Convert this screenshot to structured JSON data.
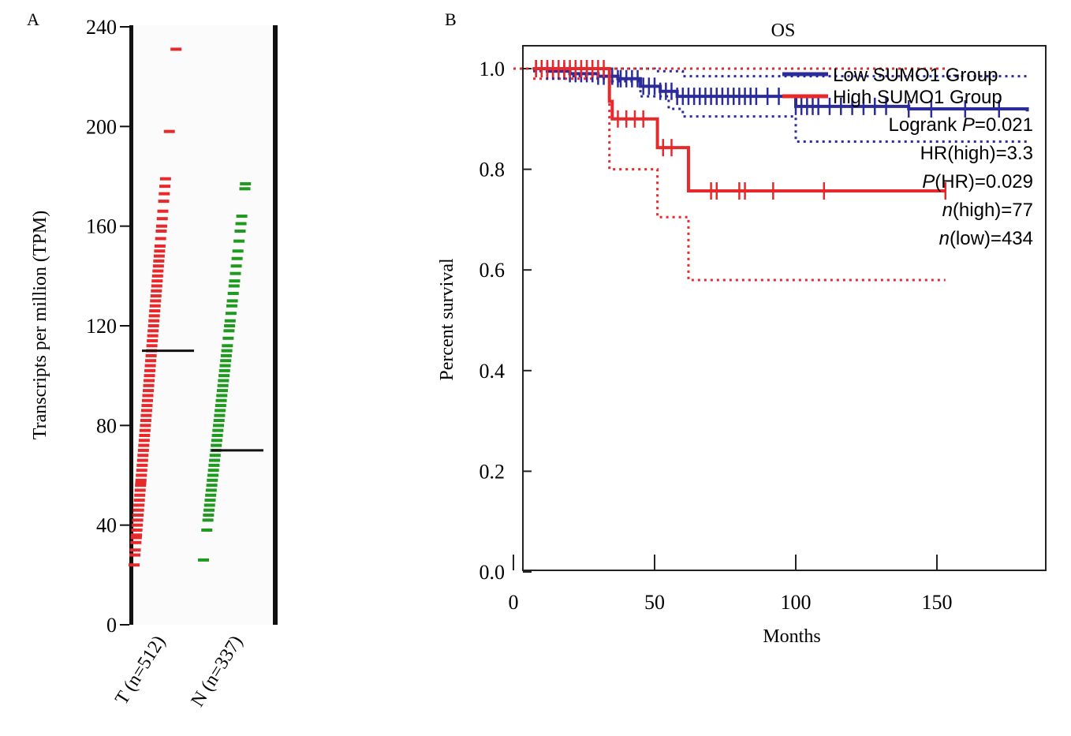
{
  "chart_data": [
    {
      "panel_label": "A",
      "type": "scatter",
      "ylabel": "Transcripts per million (TPM)",
      "ylim": [
        0,
        240
      ],
      "yticks": [
        0,
        40,
        80,
        120,
        160,
        200,
        240
      ],
      "groups": [
        {
          "name": "T (n=512)",
          "color": "#e8292c",
          "median": 110,
          "values": [
            24,
            28,
            30,
            33,
            35,
            36,
            38,
            40,
            42,
            44,
            46,
            48,
            50,
            52,
            54,
            56,
            57,
            58,
            60,
            62,
            64,
            66,
            68,
            70,
            72,
            74,
            76,
            78,
            80,
            82,
            84,
            86,
            88,
            90,
            92,
            94,
            96,
            98,
            100,
            102,
            104,
            106,
            108,
            110,
            112,
            114,
            116,
            118,
            120,
            122,
            124,
            126,
            128,
            130,
            132,
            134,
            136,
            138,
            140,
            142,
            144,
            146,
            148,
            150,
            152,
            155,
            158,
            160,
            163,
            166,
            170,
            173,
            176,
            179,
            198,
            231
          ]
        },
        {
          "name": "N (n=337)",
          "color": "#1f9a1f",
          "median": 70,
          "values": [
            26,
            38,
            42,
            44,
            46,
            48,
            50,
            52,
            54,
            56,
            58,
            60,
            62,
            64,
            66,
            68,
            70,
            72,
            74,
            76,
            78,
            80,
            82,
            84,
            86,
            88,
            90,
            92,
            94,
            96,
            98,
            100,
            102,
            104,
            106,
            108,
            110,
            112,
            115,
            118,
            120,
            122,
            125,
            128,
            130,
            133,
            136,
            138,
            141,
            144,
            147,
            150,
            154,
            158,
            161,
            164,
            175,
            177
          ]
        }
      ]
    },
    {
      "panel_label": "B",
      "type": "line",
      "title": "OS",
      "xlabel": "Months",
      "ylabel": "Percent survival",
      "xlim": [
        0,
        190
      ],
      "ylim": [
        0,
        1.05
      ],
      "xticks": [
        0,
        50,
        100,
        150
      ],
      "yticks": [
        "0.0",
        "0.2",
        "0.4",
        "0.6",
        "0.8",
        "1.0"
      ],
      "series": [
        {
          "name": "Low SUMO1 Group",
          "color": "#2b2b9a",
          "steps": [
            [
              7,
              1.0
            ],
            [
              12,
              0.995
            ],
            [
              20,
              0.99
            ],
            [
              30,
              0.985
            ],
            [
              37,
              0.98
            ],
            [
              45,
              0.965
            ],
            [
              52,
              0.955
            ],
            [
              58,
              0.945
            ],
            [
              68,
              0.945
            ],
            [
              80,
              0.945
            ],
            [
              98,
              0.945
            ],
            [
              100,
              0.925
            ],
            [
              140,
              0.92
            ],
            [
              182,
              0.915
            ]
          ],
          "ci_upper": [
            [
              7,
              1.0
            ],
            [
              50,
              0.995
            ],
            [
              60,
              0.985
            ],
            [
              100,
              0.985
            ],
            [
              182,
              0.985
            ]
          ],
          "ci_lower": [
            [
              7,
              0.995
            ],
            [
              20,
              0.985
            ],
            [
              35,
              0.975
            ],
            [
              45,
              0.945
            ],
            [
              55,
              0.92
            ],
            [
              60,
              0.905
            ],
            [
              100,
              0.855
            ],
            [
              182,
              0.855
            ]
          ],
          "censor_x": [
            8,
            10,
            12,
            14,
            16,
            18,
            20,
            22,
            24,
            26,
            28,
            30,
            32,
            35,
            37,
            38,
            40,
            42,
            44,
            46,
            48,
            50,
            52,
            54,
            56,
            58,
            60,
            62,
            64,
            66,
            68,
            70,
            72,
            74,
            76,
            78,
            80,
            82,
            84,
            86,
            90,
            94,
            100,
            102,
            104,
            106,
            108,
            112,
            116,
            120,
            124,
            128,
            132,
            140,
            148,
            160,
            172
          ]
        },
        {
          "name": "High SUMO1 Group",
          "color": "#e8292c",
          "steps": [
            [
              7,
              1.0
            ],
            [
              33,
              1.0
            ],
            [
              34,
              0.935
            ],
            [
              35,
              0.9
            ],
            [
              51,
              0.9
            ],
            [
              51,
              0.843
            ],
            [
              62,
              0.843
            ],
            [
              62,
              0.757
            ],
            [
              153,
              0.757
            ]
          ],
          "ci_upper": [
            [
              0,
              1.0
            ],
            [
              153,
              1.0
            ]
          ],
          "ci_lower": [
            [
              7,
              0.98
            ],
            [
              33,
              0.98
            ],
            [
              34,
              0.8
            ],
            [
              50,
              0.8
            ],
            [
              51,
              0.705
            ],
            [
              61,
              0.705
            ],
            [
              62,
              0.58
            ],
            [
              153,
              0.58
            ]
          ],
          "censor_x": [
            8,
            10,
            12,
            14,
            16,
            18,
            20,
            22,
            24,
            26,
            28,
            30,
            32,
            37,
            40,
            43,
            46,
            53,
            56,
            70,
            72,
            80,
            82,
            92,
            110,
            153
          ]
        }
      ],
      "annotations": [
        {
          "prefix": "Logrank ",
          "italic": "P",
          "suffix": "=0.021"
        },
        {
          "prefix": "HR(high)=3.3",
          "italic": "",
          "suffix": ""
        },
        {
          "prefix": "",
          "italic": "P",
          "suffix": "(HR)=0.029"
        },
        {
          "prefix": "",
          "italic": "n",
          "suffix": "(high)=77"
        },
        {
          "prefix": "",
          "italic": "n",
          "suffix": "(low)=434"
        }
      ]
    }
  ]
}
